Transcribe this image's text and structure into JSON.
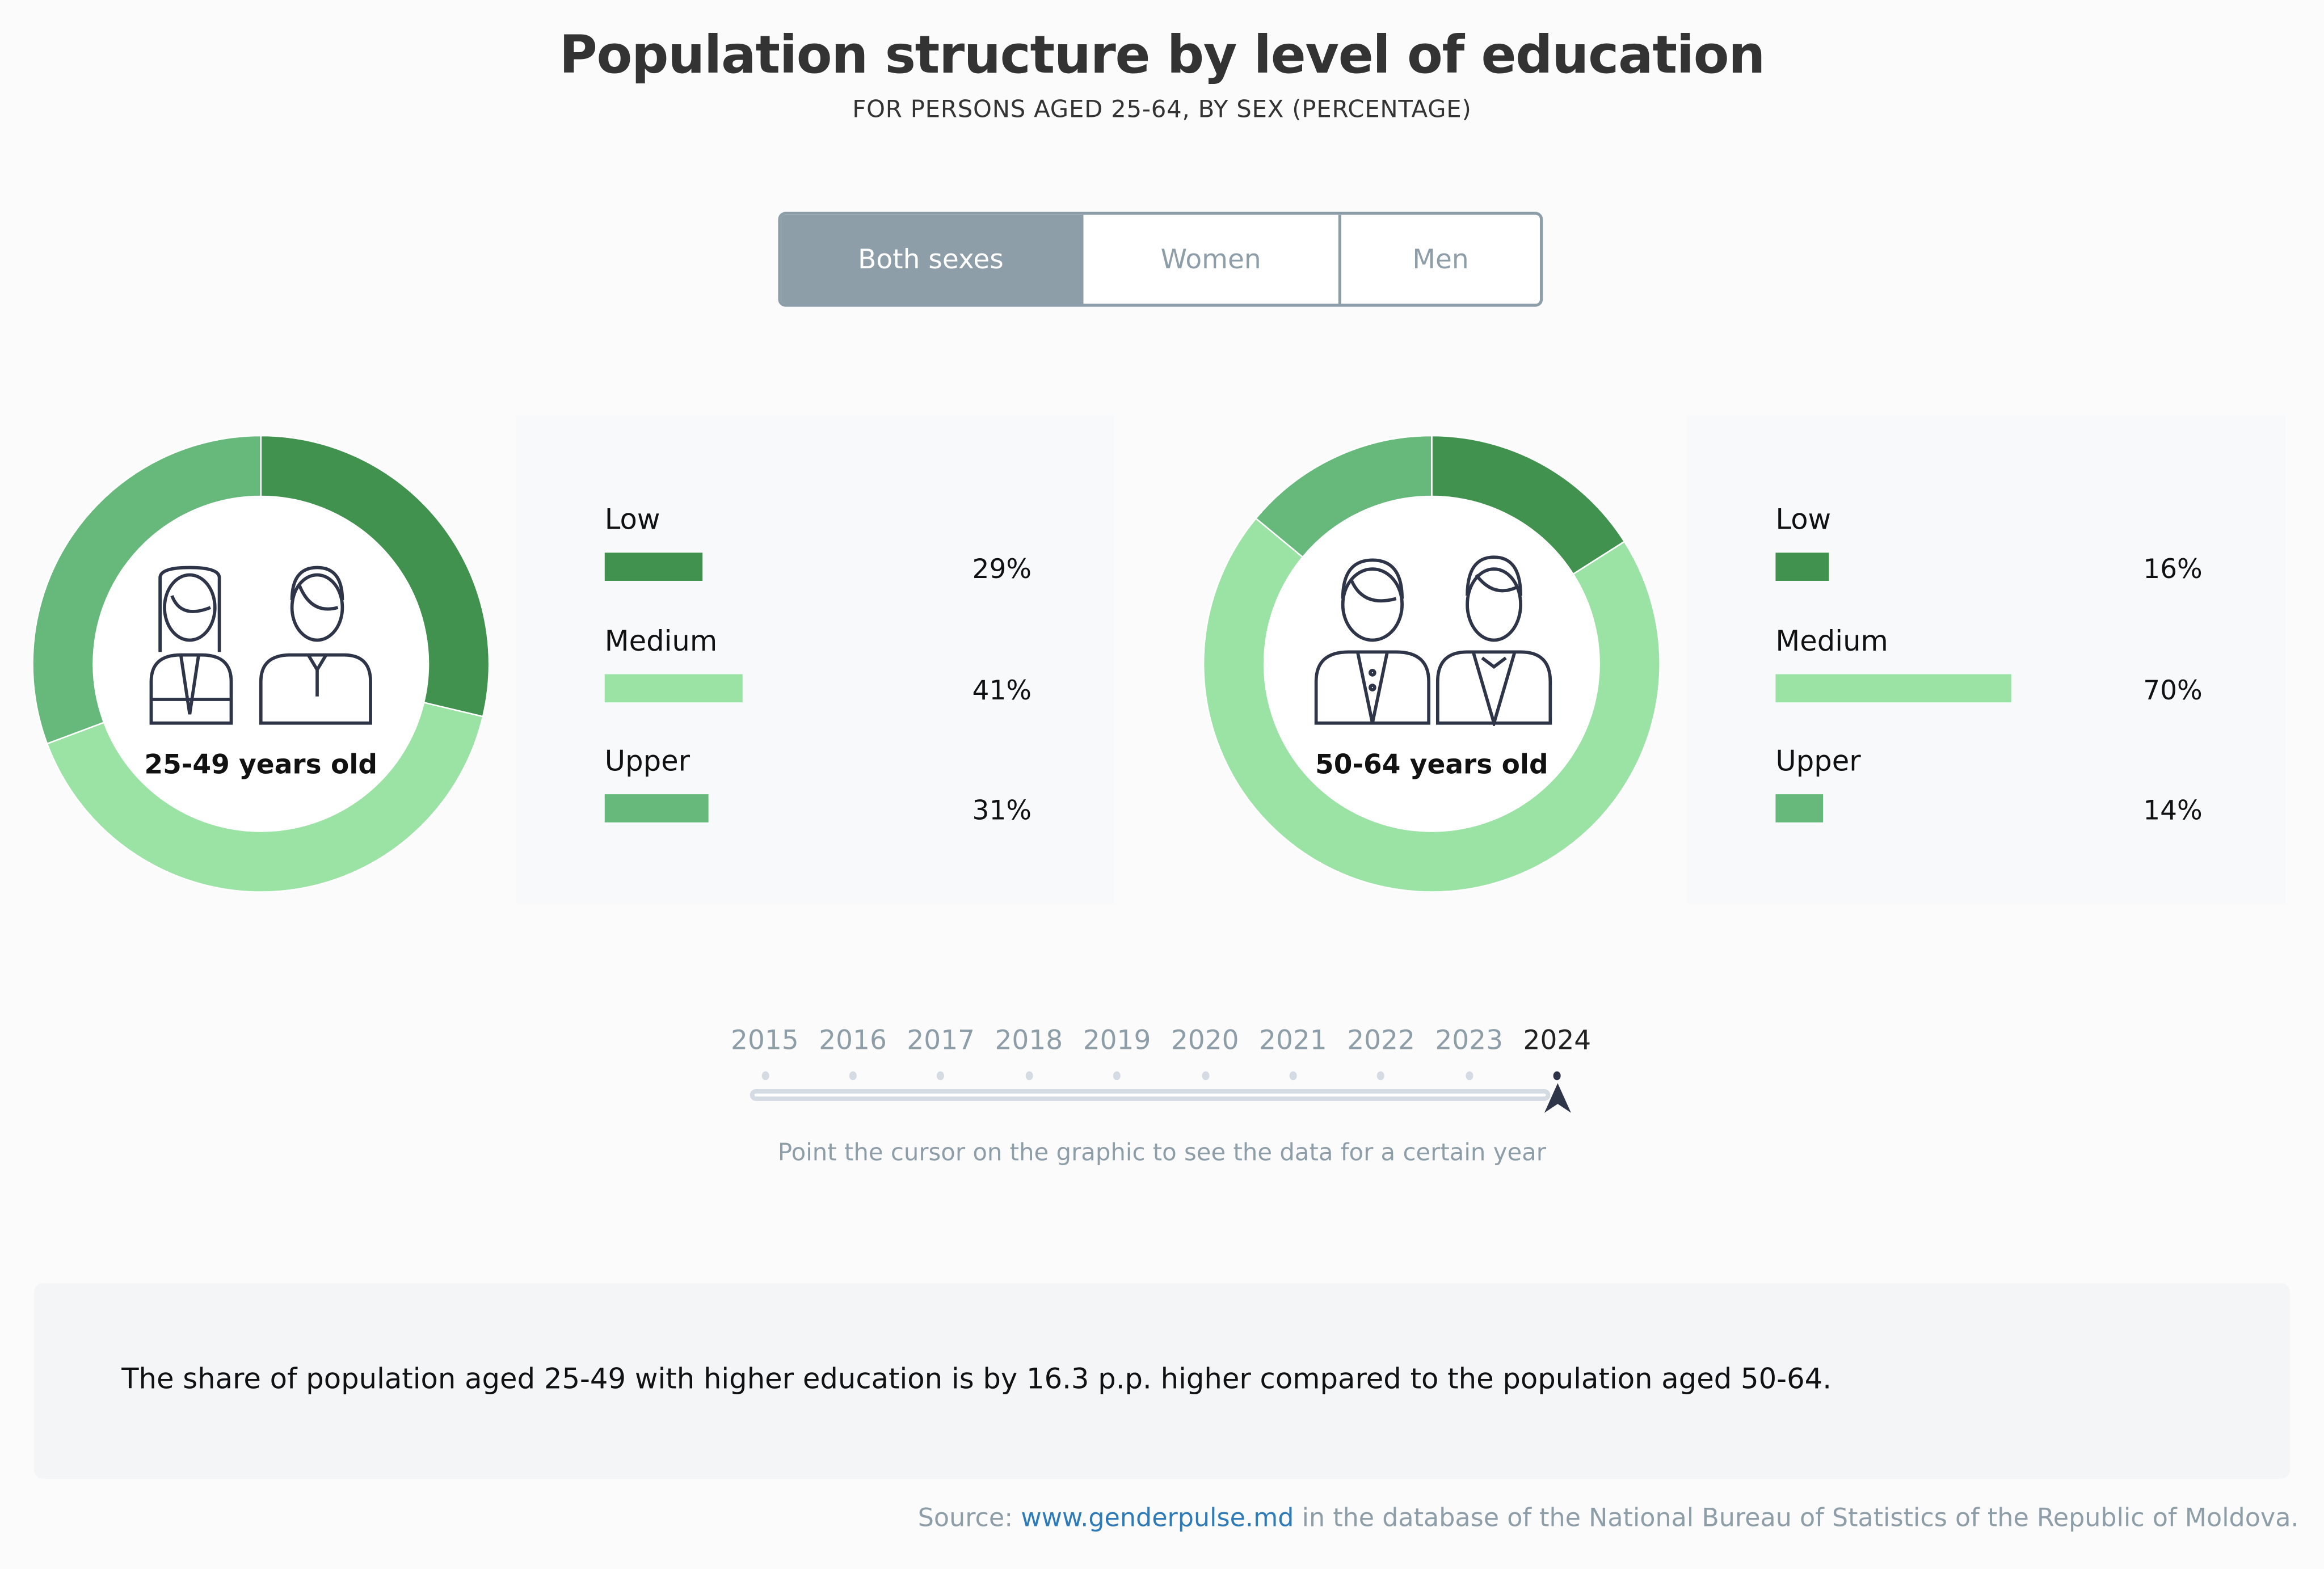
{
  "header": {
    "title": "Population structure by level of education",
    "subtitle": "FOR PERSONS AGED 25-64, BY SEX (PERCENTAGE)"
  },
  "toggle": {
    "options": [
      "Both sexes",
      "Women",
      "Men"
    ],
    "selected": "Both sexes"
  },
  "colors": {
    "Low": "#41924f",
    "Medium": "#9be2a5",
    "Upper": "#66b87b",
    "accent": "#8d9ea9"
  },
  "chart_data": [
    {
      "type": "pie",
      "donut": true,
      "label": "25-49 years old",
      "categories": [
        "Low",
        "Medium",
        "Upper"
      ],
      "values": [
        29,
        41,
        31
      ],
      "value_labels": [
        "29%",
        "41%",
        "31%"
      ]
    },
    {
      "type": "pie",
      "donut": true,
      "label": "50-64 years old",
      "categories": [
        "Low",
        "Medium",
        "Upper"
      ],
      "values": [
        16,
        70,
        14
      ],
      "value_labels": [
        "16%",
        "70%",
        "14%"
      ]
    }
  ],
  "timeline": {
    "years": [
      "2015",
      "2016",
      "2017",
      "2018",
      "2019",
      "2020",
      "2021",
      "2022",
      "2023",
      "2024"
    ],
    "selected": "2024",
    "hint": "Point the cursor on the graphic to see the data for a certain year"
  },
  "note": "The share of population aged 25-49 with higher education is by 16.3 p.p. higher compared to the population aged 50-64.",
  "source": {
    "prefix": "Source: ",
    "link": "www.genderpulse.md",
    "suffix": " in the database of the National Bureau of Statistics of the Republic of Moldova."
  }
}
